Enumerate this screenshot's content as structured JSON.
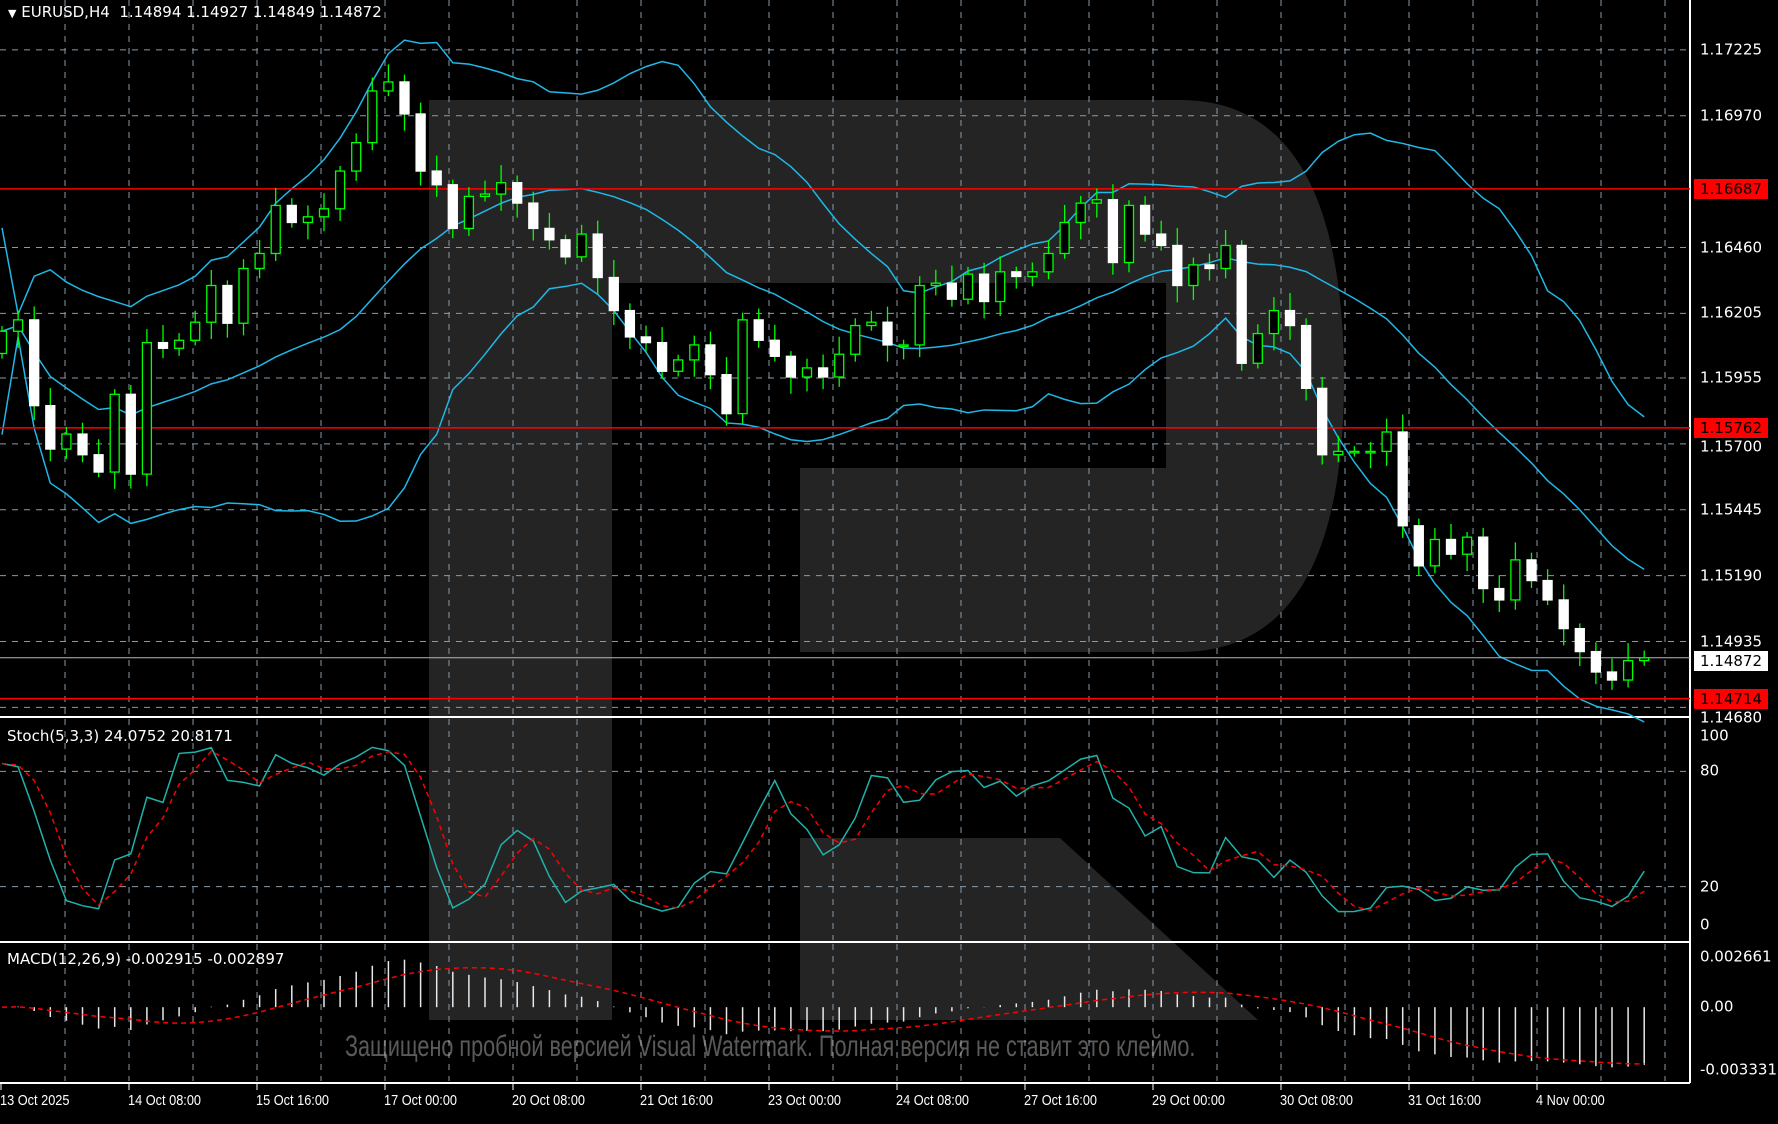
{
  "header": {
    "symbol": "EURUSD,H4",
    "ohlc": "1.14894 1.14927 1.14849 1.14872",
    "menu_icon": "triangle-down-icon"
  },
  "stoch": {
    "label": "Stoch(5,3,3) 24.0752 20.8171",
    "ticks": [
      "100",
      "80",
      "20",
      "0"
    ],
    "tick_values": [
      100,
      80,
      20,
      0
    ]
  },
  "macd": {
    "label": "MACD(12,26,9) -0.002915 -0.002897",
    "ticks": [
      "0.002661",
      "0.00",
      "-0.003331"
    ],
    "tick_values": [
      0.002661,
      0,
      -0.003331
    ]
  },
  "watermark": "Защищено пробной версией Visual Watermark. Полная версия не ставит это клеймо.",
  "colors": {
    "bull": "#00ff00",
    "bear": "#ffffff",
    "band": "#1fb8e8",
    "level": "#ff0000",
    "stoch_k": "#20b2aa",
    "signal": "#ff0000"
  },
  "chart_data": {
    "type": "candlestick",
    "symbol": "EURUSD",
    "timeframe": "H4",
    "price_ticks": [
      "1.17225",
      "1.16970",
      "1.16460",
      "1.16205",
      "1.15955",
      "1.15700",
      "1.15445",
      "1.15190",
      "1.14935",
      "1.14680"
    ],
    "levels": [
      {
        "label": "1.16687",
        "value": 1.16687,
        "color": "#ff0000"
      },
      {
        "label": "1.15762",
        "value": 1.15762,
        "color": "#ff0000"
      },
      {
        "label": "1.14714",
        "value": 1.14714,
        "color": "#ff0000"
      },
      {
        "label": "1.14872",
        "value": 1.14872,
        "color": "#ffffff",
        "current": true
      }
    ],
    "time_labels": [
      "13 Oct 2025",
      "14 Oct 08:00",
      "15 Oct 16:00",
      "17 Oct 00:00",
      "20 Oct 08:00",
      "21 Oct 16:00",
      "23 Oct 00:00",
      "24 Oct 08:00",
      "27 Oct 16:00",
      "29 Oct 00:00",
      "30 Oct 08:00",
      "31 Oct 16:00",
      "4 Nov 00:00"
    ],
    "close": [
      1.16136,
      1.1618,
      1.15848,
      1.1568,
      1.15738,
      1.15658,
      1.15591,
      1.15892,
      1.15583,
      1.16092,
      1.1607,
      1.16101,
      1.16171,
      1.16313,
      1.16167,
      1.16379,
      1.16437,
      1.16623,
      1.16557,
      1.16579,
      1.1661,
      1.16756,
      1.16866,
      1.17066,
      1.17101,
      1.16977,
      1.16756,
      1.16703,
      1.16534,
      1.16658,
      1.16667,
      1.16711,
      1.16632,
      1.16534,
      1.1649,
      1.16424,
      1.16512,
      1.16344,
      1.16216,
      1.16114,
      1.16092,
      1.15981,
      1.16025,
      1.16083,
      1.15968,
      1.15817,
      1.1618,
      1.16101,
      1.16039,
      1.15959,
      1.15994,
      1.15959,
      1.16047,
      1.16158,
      1.16171,
      1.16083,
      1.16083,
      1.16313,
      1.16322,
      1.1626,
      1.16357,
      1.16251,
      1.16366,
      1.16348,
      1.16366,
      1.16437,
      1.16557,
      1.16632,
      1.16645,
      1.16402,
      1.16623,
      1.16512,
      1.16468,
      1.16313,
      1.16393,
      1.16379,
      1.16468,
      1.16012,
      1.16127,
      1.16216,
      1.16158,
      1.15915,
      1.15658,
      1.15671,
      1.15671,
      1.15671,
      1.15746,
      1.15383,
      1.15228,
      1.1533,
      1.15273,
      1.15339,
      1.1514,
      1.15096,
      1.15251,
      1.15171,
      1.15096,
      1.14985,
      1.14896,
      1.14817,
      1.14786,
      1.14861,
      1.14872
    ]
  }
}
